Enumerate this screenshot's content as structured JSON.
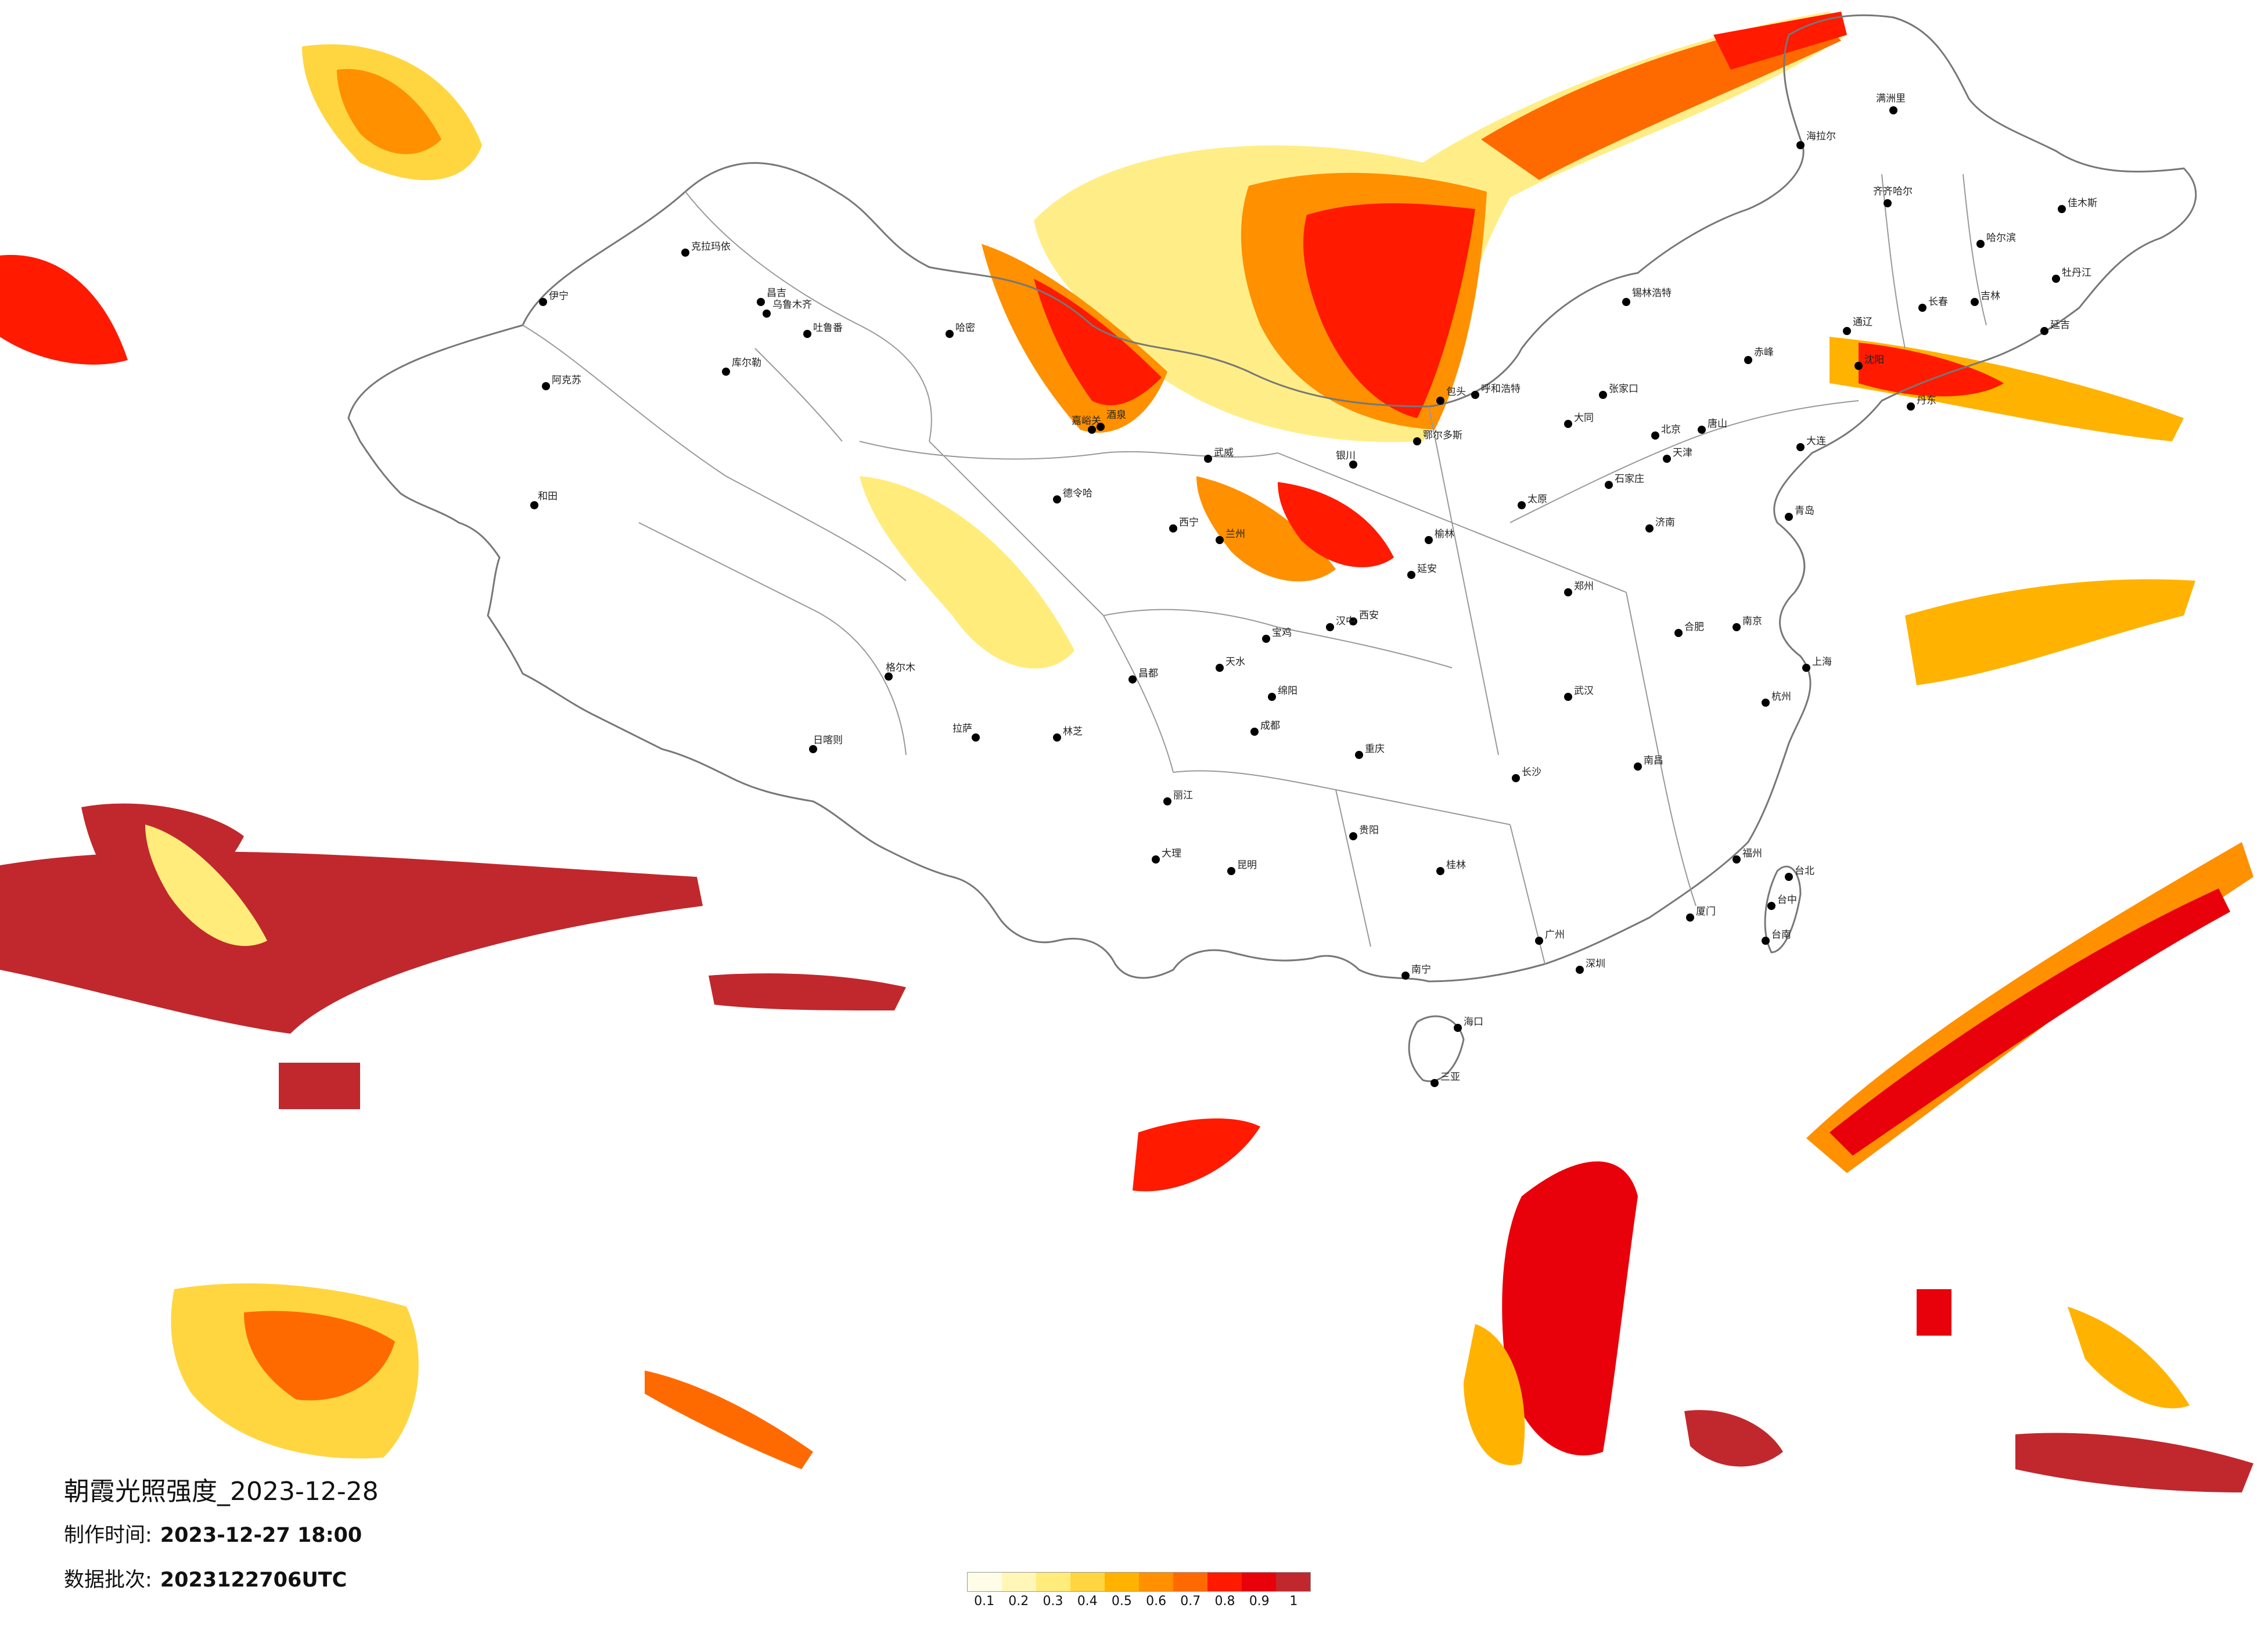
{
  "caption": {
    "title": "朝霞光照强度_2023-12-28",
    "made_label": "制作时间:",
    "made_value": "2023-12-27 18:00",
    "batch_label": "数据批次:",
    "batch_value": "2023122706UTC"
  },
  "legend": {
    "ticks": [
      "0.1",
      "0.2",
      "0.3",
      "0.4",
      "0.5",
      "0.6",
      "0.7",
      "0.8",
      "0.9",
      "1"
    ],
    "colors": [
      "#fffde8",
      "#fff6b8",
      "#ffec7a",
      "#ffd640",
      "#ffb300",
      "#ff9000",
      "#ff6a00",
      "#ff1a00",
      "#e8000a",
      "#c0282d"
    ]
  },
  "map": {
    "background": "#ffffff",
    "border_color": "#777777",
    "cities": [
      "克拉玛依",
      "伊宁",
      "昌吉",
      "乌鲁木齐",
      "吐鲁番",
      "哈密",
      "库尔勒",
      "阿克苏",
      "和田",
      "格尔木",
      "德令哈",
      "嘉峪关",
      "酒泉",
      "武威",
      "西宁",
      "兰州",
      "银川",
      "呼和浩特",
      "包头",
      "鄂尔多斯",
      "榆林",
      "延安",
      "太原",
      "大同",
      "张家口",
      "北京",
      "天津",
      "石家庄",
      "唐山",
      "济南",
      "青岛",
      "郑州",
      "西安",
      "宝鸡",
      "天水",
      "汉中",
      "成都",
      "绵阳",
      "重庆",
      "贵阳",
      "昆明",
      "大理",
      "丽江",
      "拉萨",
      "日喀则",
      "林芝",
      "昌都",
      "武汉",
      "长沙",
      "南昌",
      "合肥",
      "南京",
      "上海",
      "杭州",
      "福州",
      "厦门",
      "广州",
      "深圳",
      "南宁",
      "桂林",
      "海口",
      "三亚",
      "台北",
      "台中",
      "台南",
      "沈阳",
      "大连",
      "长春",
      "吉林",
      "哈尔滨",
      "齐齐哈尔",
      "牡丹江",
      "佳木斯",
      "锡林浩特",
      "赤峰",
      "通辽",
      "满洲里",
      "海拉尔",
      "延吉",
      "丹东"
    ]
  },
  "intensity_regions": [
    {
      "level": 0.3,
      "label": "north-mongolia-band"
    },
    {
      "level": 0.9,
      "label": "northeast-band"
    },
    {
      "level": 1.0,
      "label": "tibet-west-block"
    },
    {
      "level": 0.9,
      "label": "pacific-band"
    },
    {
      "level": 0.9,
      "label": "south-china-sea-cluster"
    }
  ]
}
